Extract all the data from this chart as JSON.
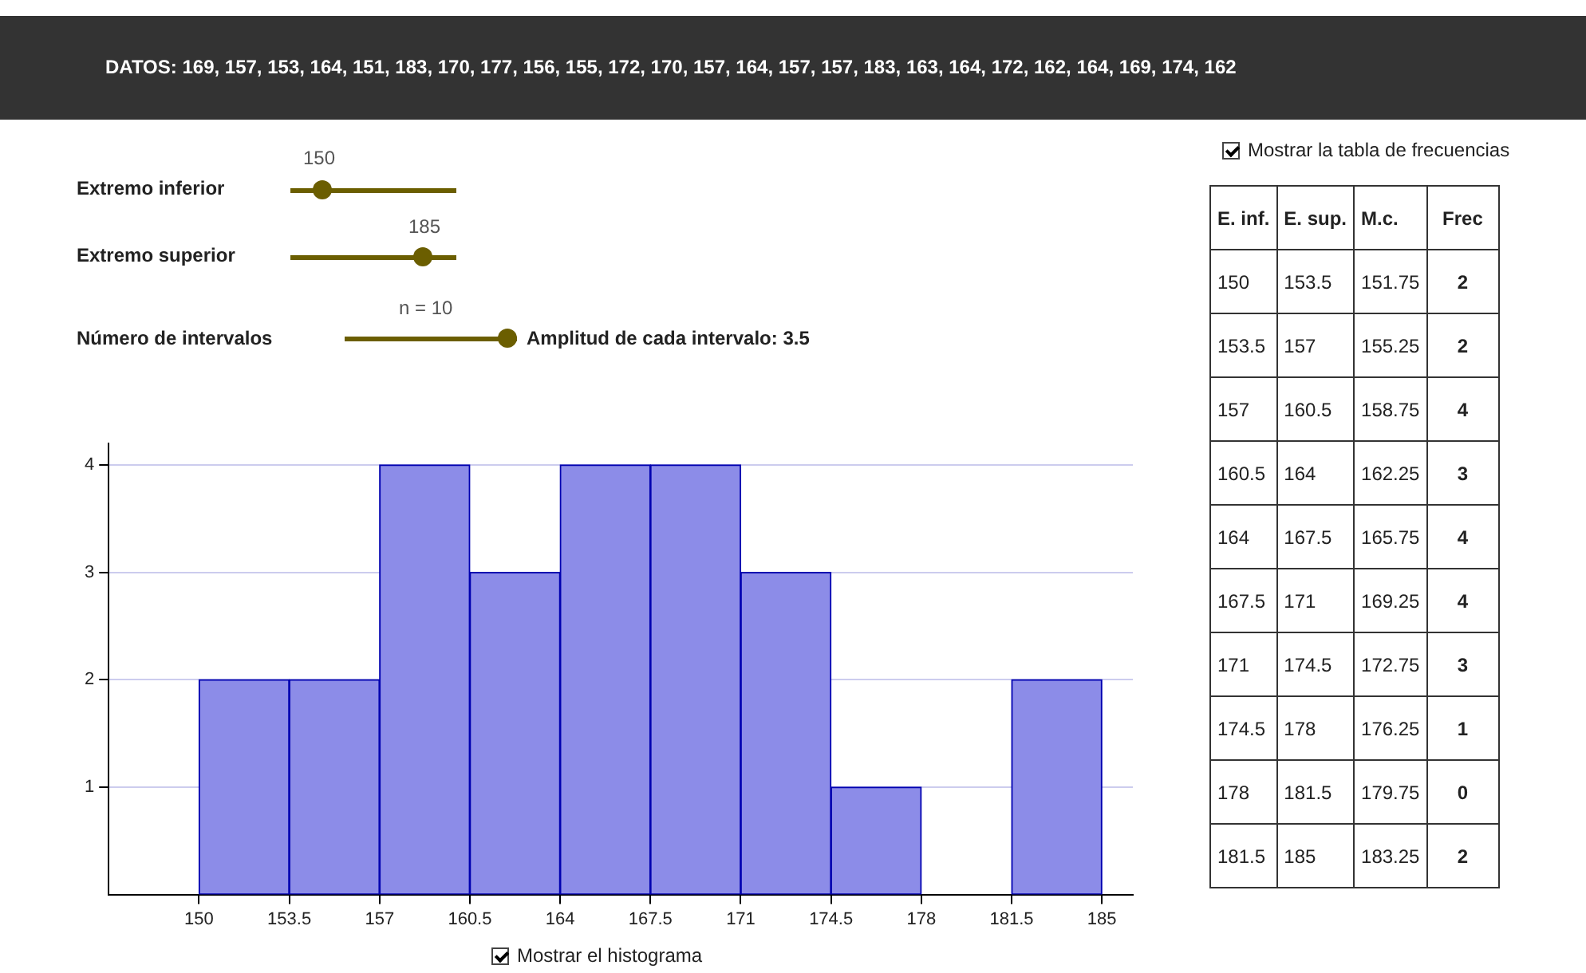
{
  "chart_data": {
    "type": "histogram",
    "bins": [
      150,
      153.5,
      157,
      160.5,
      164,
      167.5,
      171,
      174.5,
      178,
      181.5,
      185
    ],
    "values": [
      2,
      2,
      4,
      3,
      4,
      4,
      3,
      1,
      0,
      2
    ],
    "color": "#8c8ce8",
    "xlim": [
      146.5,
      186.2
    ],
    "ylim": [
      0,
      4.2
    ],
    "xticks": [
      150,
      153.5,
      157,
      160.5,
      164,
      167.5,
      171,
      174.5,
      178,
      181.5,
      185
    ],
    "yticks": [
      1,
      2,
      3,
      4
    ],
    "grid": "y",
    "legend": false,
    "annotations": [
      "DATOS:   169,  157,  153,  164,  151,  183,  170,  177,  156,  155,  172,  170,  157,  164,  157,  157,  183,  163,  164,  172,  162,  164,  169,  174,  162",
      "Extremo inferior",
      "150",
      "Extremo superior",
      "185",
      "Número de intervalos",
      "n = 10",
      "Amplitud de cada intervalo: 3.5",
      "Mostrar la tabla de frecuencias",
      "Mostrar el histograma",
      "E. inf.",
      "E. sup.",
      "M.c.",
      "Frec",
      "150",
      "153.5",
      "151.75",
      "2",
      "153.5",
      "157",
      "155.25",
      "2",
      "157",
      "160.5",
      "158.75",
      "4",
      "160.5",
      "164",
      "162.25",
      "3",
      "164",
      "167.5",
      "165.75",
      "4",
      "167.5",
      "171",
      "169.25",
      "4",
      "171",
      "174.5",
      "172.75",
      "3",
      "174.5",
      "178",
      "176.25",
      "1",
      "178",
      "181.5",
      "179.75",
      "0",
      "181.5",
      "185",
      "183.25",
      "2"
    ]
  }
}
